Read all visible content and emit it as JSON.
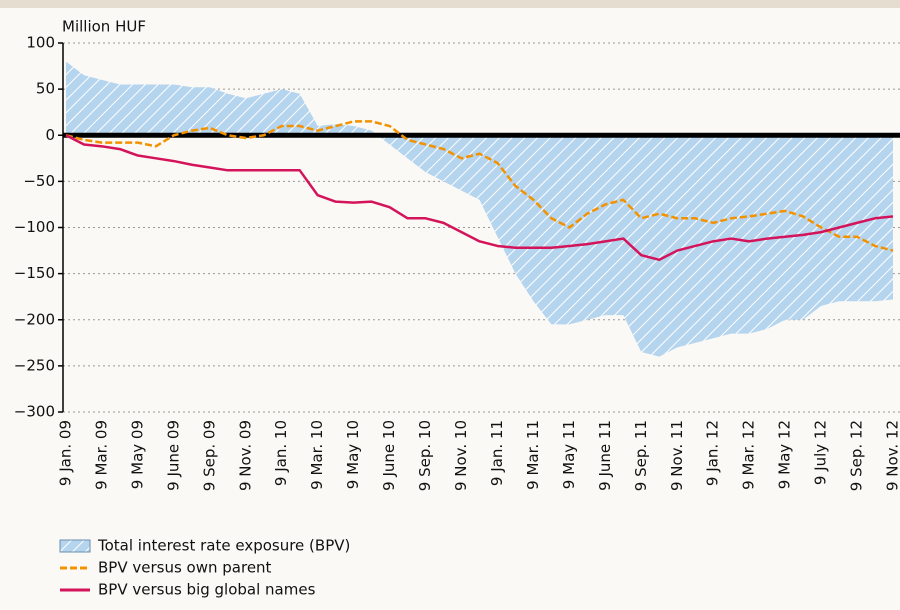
{
  "chart_data": {
    "type": "line",
    "y_axis_label": "Million HUF",
    "categories": [
      "9 Jan. 09",
      null,
      "9 Mar. 09",
      null,
      "9 May 09",
      null,
      "9 June 09",
      null,
      "9 Sep. 09",
      null,
      "9 Nov. 09",
      null,
      "9 Jan. 10",
      null,
      "9 Mar. 10",
      null,
      "9 May 10",
      null,
      "9 June 10",
      null,
      "9 Sep. 10",
      null,
      "9 Nov. 10",
      null,
      "9 Jan. 11",
      null,
      "9 Mar. 11",
      null,
      "9 May 11",
      null,
      "9 June 11",
      null,
      "9 Sep. 11",
      null,
      "9 Nov. 11",
      null,
      "9 Jan. 12",
      null,
      "9 Mar. 12",
      null,
      "9 May 12",
      null,
      "9 July 12",
      null,
      "9 Sep. 12",
      null,
      "9 Nov. 12"
    ],
    "series": [
      {
        "name": "Total interest rate exposure (BPV)",
        "kind": "area",
        "color": "#a9cdea",
        "values": [
          80,
          65,
          60,
          55,
          55,
          55,
          55,
          52,
          52,
          45,
          40,
          45,
          50,
          45,
          10,
          12,
          10,
          5,
          -10,
          -25,
          -40,
          -50,
          -60,
          -70,
          -110,
          -150,
          -180,
          -205,
          -205,
          -200,
          -195,
          -195,
          -235,
          -240,
          -230,
          -225,
          -220,
          -215,
          -215,
          -210,
          -200,
          -200,
          -185,
          -180,
          -180,
          -180,
          -178
        ]
      },
      {
        "name": "BPV versus own parent",
        "kind": "dashed",
        "color": "#f39200",
        "values": [
          0,
          -5,
          -8,
          -8,
          -8,
          -12,
          0,
          5,
          8,
          0,
          -3,
          0,
          10,
          10,
          5,
          10,
          15,
          15,
          10,
          -5,
          -10,
          -15,
          -25,
          -20,
          -30,
          -55,
          -70,
          -90,
          -100,
          -85,
          -75,
          -70,
          -90,
          -85,
          -90,
          -90,
          -95,
          -90,
          -88,
          -85,
          -82,
          -88,
          -100,
          -110,
          -110,
          -120,
          -125
        ]
      },
      {
        "name": "BPV versus big global names",
        "kind": "solid",
        "color": "#d4145a",
        "values": [
          0,
          -10,
          -12,
          -15,
          -22,
          -25,
          -28,
          -32,
          -35,
          -38,
          -38,
          -38,
          -38,
          -38,
          -65,
          -72,
          -73,
          -72,
          -78,
          -90,
          -90,
          -95,
          -105,
          -115,
          -120,
          -122,
          -122,
          -122,
          -120,
          -118,
          -115,
          -112,
          -130,
          -135,
          -125,
          -120,
          -115,
          -112,
          -115,
          -112,
          -110,
          -108,
          -105,
          -100,
          -95,
          -90,
          -88
        ]
      }
    ],
    "ylim": [
      -300,
      100
    ],
    "yticks": [
      100,
      50,
      0,
      {
        "value": -50,
        "label": "−50"
      },
      {
        "value": -100,
        "label": "−100"
      },
      {
        "value": -150,
        "label": "−150"
      },
      {
        "value": -200,
        "label": "−200"
      },
      {
        "value": -250,
        "label": "−250"
      },
      {
        "value": -300,
        "label": "−300"
      }
    ],
    "grid": true
  }
}
